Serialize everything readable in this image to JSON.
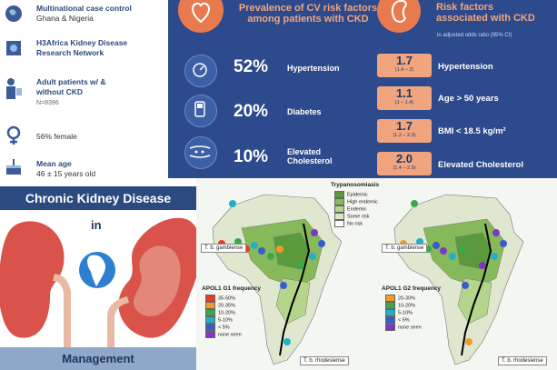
{
  "colors": {
    "panel_blue": "#2c4a8c",
    "accent_orange": "#e87a50",
    "peach": "#f1a57f",
    "ckd_bar": "#2a4a80"
  },
  "left_items": [
    {
      "title": "Multinational case control",
      "sub": "Ghana & Nigeria",
      "icon": "globe-icon"
    },
    {
      "title": "H3Africa Kidney Disease",
      "sub": "Research Network",
      "icon": "network-icon"
    },
    {
      "title": "Adult patients w/ &",
      "sub": "without CKD",
      "sub2": "N=8396",
      "icon": "patients-icon"
    },
    {
      "title": "",
      "sub": "56% female",
      "icon": "female-icon"
    },
    {
      "title": "Mean age",
      "sub": "46 ± 15 years old",
      "icon": "cake-icon"
    }
  ],
  "panel": {
    "prevalence_header": [
      "Prevalence of CV risk factors",
      "among patients with CKD"
    ],
    "risk_header": [
      "Risk factors",
      "associated with CKD"
    ],
    "or_note": "in adjusted odds ratio (95% CI)",
    "prevalence": [
      {
        "pct": "52%",
        "label": "Hypertension",
        "icon": "blood-pressure-icon"
      },
      {
        "pct": "20%",
        "label": "Diabetes",
        "icon": "glucometer-icon"
      },
      {
        "pct": "10%",
        "label": "Elevated Cholesterol",
        "icon": "artery-icon"
      }
    ],
    "risk_factors": [
      {
        "or": "1.7",
        "ci": "(1.4 – 2)",
        "label": "Hypertension"
      },
      {
        "or": "1.1",
        "ci": "(1 – 1.4)",
        "label": "Age > 50 years"
      },
      {
        "or": "1.7",
        "ci": "(1.2 – 2.3)",
        "label": "BMI < 18.5 kg/m²"
      },
      {
        "or": "2.0",
        "ci": "(1.4 – 2.9)",
        "label": "Elevated Cholesterol"
      }
    ]
  },
  "ckd": {
    "title": "Chronic Kidney Disease",
    "in_label": "in",
    "footer": "Management"
  },
  "trypanosomiasis_legend": {
    "title": "Trypanosomiasis",
    "entries": [
      {
        "label": "Epidemic",
        "color": "#5b9a3c"
      },
      {
        "label": "High endemic",
        "color": "#86b95a"
      },
      {
        "label": "Endemic",
        "color": "#b5d48c"
      },
      {
        "label": "Some risk",
        "color": "#dbeac5"
      },
      {
        "label": "No risk",
        "color": "#ffffff"
      }
    ]
  },
  "map_left": {
    "gambiense_label": "T. b. gambiense",
    "rhodesiense_label": "T. b. rhodesiense",
    "legend_title": "APOL1 G1 frequency",
    "legend": [
      {
        "label": "35-50%",
        "color": "#e83a2a"
      },
      {
        "label": "20-35%",
        "color": "#f29a2a"
      },
      {
        "label": "10-20%",
        "color": "#3aa84a"
      },
      {
        "label": "5-10%",
        "color": "#22b0c8"
      },
      {
        "label": "< 5%",
        "color": "#3a5cc8"
      },
      {
        "label": "none seen",
        "color": "#7a3ac0"
      }
    ]
  },
  "map_right": {
    "gambiense_label": "T. b. gambiense",
    "rhodesiense_label": "T. b. rhodesiense",
    "legend_title": "APOL1 G2 frequency",
    "legend": [
      {
        "label": "20-30%",
        "color": "#f29a2a"
      },
      {
        "label": "10-20%",
        "color": "#3aa84a"
      },
      {
        "label": "5-10%",
        "color": "#22b0c8"
      },
      {
        "label": "< 5%",
        "color": "#3a5cc8"
      },
      {
        "label": "none seen",
        "color": "#7a3ac0"
      }
    ]
  }
}
